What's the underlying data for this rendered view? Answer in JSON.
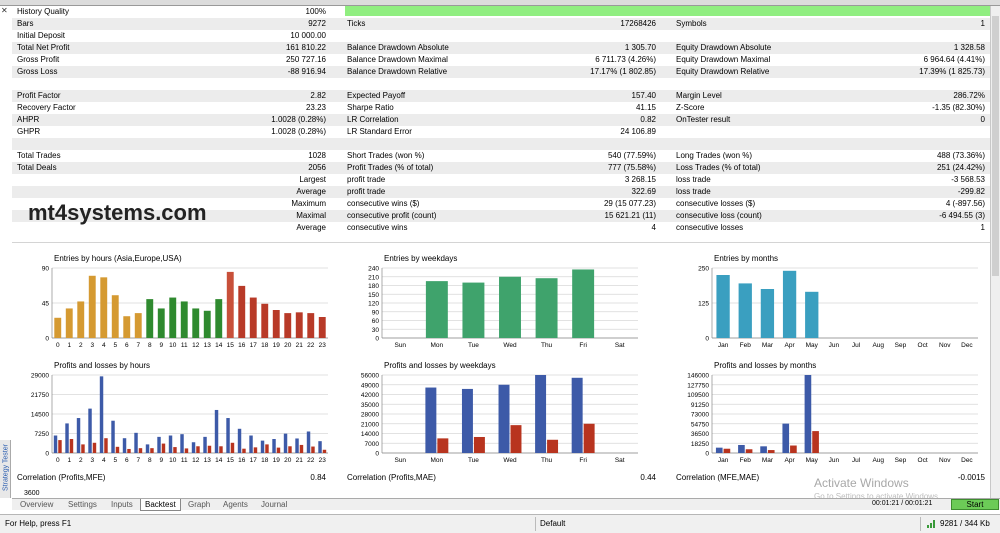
{
  "rows": [
    {
      "c1l": "History Quality",
      "c1v": "100%",
      "c2l": "",
      "c2v": "",
      "c3l": "",
      "c3v": "",
      "alt": false
    },
    {
      "c1l": "Bars",
      "c1v": "9272",
      "c2l": "Ticks",
      "c2v": "17268426",
      "c3l": "Symbols",
      "c3v": "1",
      "alt": true
    },
    {
      "c1l": "Initial Deposit",
      "c1v": "10 000.00",
      "c2l": "",
      "c2v": "",
      "c3l": "",
      "c3v": "",
      "alt": false
    },
    {
      "c1l": "Total Net Profit",
      "c1v": "161 810.22",
      "c2l": "Balance Drawdown Absolute",
      "c2v": "1 305.70",
      "c3l": "Equity Drawdown Absolute",
      "c3v": "1 328.58",
      "alt": true
    },
    {
      "c1l": "Gross Profit",
      "c1v": "250 727.16",
      "c2l": "Balance Drawdown Maximal",
      "c2v": "6 711.73 (4.26%)",
      "c3l": "Equity Drawdown Maximal",
      "c3v": "6 964.64 (4.41%)",
      "alt": false
    },
    {
      "c1l": "Gross Loss",
      "c1v": "-88 916.94",
      "c2l": "Balance Drawdown Relative",
      "c2v": "17.17% (1 802.85)",
      "c3l": "Equity Drawdown Relative",
      "c3v": "17.39% (1 825.73)",
      "alt": true
    },
    {
      "c1l": "",
      "c1v": "",
      "c2l": "",
      "c2v": "",
      "c3l": "",
      "c3v": "",
      "alt": false
    },
    {
      "c1l": "Profit Factor",
      "c1v": "2.82",
      "c2l": "Expected Payoff",
      "c2v": "157.40",
      "c3l": "Margin Level",
      "c3v": "286.72%",
      "alt": true
    },
    {
      "c1l": "Recovery Factor",
      "c1v": "23.23",
      "c2l": "Sharpe Ratio",
      "c2v": "41.15",
      "c3l": "Z-Score",
      "c3v": "-1.35 (82.30%)",
      "alt": false
    },
    {
      "c1l": "AHPR",
      "c1v": "1.0028 (0.28%)",
      "c2l": "LR Correlation",
      "c2v": "0.82",
      "c3l": "OnTester result",
      "c3v": "0",
      "alt": true
    },
    {
      "c1l": "GHPR",
      "c1v": "1.0028 (0.28%)",
      "c2l": "LR Standard Error",
      "c2v": "24 106.89",
      "c3l": "",
      "c3v": "",
      "alt": false
    },
    {
      "c1l": "",
      "c1v": "",
      "c2l": "",
      "c2v": "",
      "c3l": "",
      "c3v": "",
      "alt": true
    },
    {
      "c1l": "Total Trades",
      "c1v": "1028",
      "c2l": "Short Trades (won %)",
      "c2v": "540 (77.59%)",
      "c3l": "Long Trades (won %)",
      "c3v": "488 (73.36%)",
      "alt": false
    },
    {
      "c1l": "Total Deals",
      "c1v": "2056",
      "c2l": "Profit Trades (% of total)",
      "c2v": "777 (75.58%)",
      "c3l": "Loss Trades (% of total)",
      "c3v": "251 (24.42%)",
      "alt": true
    },
    {
      "c1l": "",
      "rlab": "Largest",
      "c1v": "",
      "c2l": "profit trade",
      "c2v": "3 268.15",
      "c3l": "loss trade",
      "c3v": "-3 568.53",
      "alt": false
    },
    {
      "c1l": "",
      "rlab": "Average",
      "c1v": "",
      "c2l": "profit trade",
      "c2v": "322.69",
      "c3l": "loss trade",
      "c3v": "-299.82",
      "alt": true
    },
    {
      "c1l": "",
      "rlab": "Maximum",
      "c1v": "",
      "c2l": "consecutive wins ($)",
      "c2v": "29 (15 077.23)",
      "c3l": "consecutive losses ($)",
      "c3v": "4 (-897.56)",
      "alt": false
    },
    {
      "c1l": "",
      "rlab": "Maximal",
      "c1v": "",
      "c2l": "consecutive profit (count)",
      "c2v": "15 621.21 (11)",
      "c3l": "consecutive loss (count)",
      "c3v": "-6 494.55 (3)",
      "alt": true
    },
    {
      "c1l": "",
      "rlab": "Average",
      "c1v": "",
      "c2l": "consecutive wins",
      "c2v": "4",
      "c3l": "consecutive losses",
      "c3v": "1",
      "alt": false
    }
  ],
  "watermark": "mt4systems.com",
  "correlation": {
    "l1": "Correlation (Profits,MFE)",
    "v1": "0.84",
    "l2": "Correlation (Profits,MAE)",
    "v2": "0.44",
    "l3": "Correlation (MFE,MAE)",
    "v3": "-0.0015"
  },
  "extra_value": "3600",
  "tabs": [
    "Overview",
    "Settings",
    "Inputs",
    "Backtest",
    "Graph",
    "Agents",
    "Journal"
  ],
  "active_tab": "Backtest",
  "side_tab": "Strategy Tester",
  "time_text": "00:01:21 / 00:01:21",
  "start_label": "Start",
  "status": {
    "left": "For Help, press F1",
    "mid": "Default",
    "right": "9281 / 344 Kb"
  },
  "activate": {
    "title": "Activate Windows",
    "sub": "Go to Settings to activate Windows."
  },
  "colors": {
    "accent_green": "#90ee80",
    "start_green": "#6ccb57",
    "profit_blue": "#3d5aa8",
    "loss_red": "#b8341f"
  },
  "chart_data": [
    {
      "type": "bar",
      "title": "Entries by hours (Asia,Europe,USA)",
      "categories": [
        "0",
        "1",
        "2",
        "3",
        "4",
        "5",
        "6",
        "7",
        "8",
        "9",
        "10",
        "11",
        "12",
        "13",
        "14",
        "15",
        "16",
        "17",
        "18",
        "19",
        "20",
        "21",
        "22",
        "23"
      ],
      "values": [
        26,
        38,
        47,
        80,
        78,
        55,
        28,
        32,
        50,
        38,
        52,
        47,
        38,
        35,
        50,
        85,
        67,
        52,
        44,
        36,
        32,
        33,
        32,
        27
      ],
      "bar_colors": [
        "#d59a32",
        "#d59a32",
        "#d59a32",
        "#d59a32",
        "#d59a32",
        "#d59a32",
        "#d59a32",
        "#d59a32",
        "#2f8a2f",
        "#2f8a2f",
        "#2f8a2f",
        "#2f8a2f",
        "#2f8a2f",
        "#2f8a2f",
        "#2f8a2f",
        "#c8503a",
        "#b83a28",
        "#b83a28",
        "#b83a28",
        "#b83a28",
        "#b83a28",
        "#b83a28",
        "#b83a28",
        "#b83a28"
      ],
      "yticks": [
        "0",
        "45",
        "90"
      ],
      "ylim": [
        0,
        90
      ]
    },
    {
      "type": "bar",
      "title": "Entries by weekdays",
      "categories": [
        "Sun",
        "Mon",
        "Tue",
        "Wed",
        "Thu",
        "Fri",
        "Sat"
      ],
      "values": [
        0,
        195,
        190,
        210,
        205,
        235,
        0
      ],
      "bar_color": "#3fa36c",
      "yticks": [
        "0",
        "30",
        "60",
        "90",
        "120",
        "150",
        "180",
        "210",
        "240"
      ],
      "ylim": [
        0,
        240
      ]
    },
    {
      "type": "bar",
      "title": "Entries by months",
      "categories": [
        "Jan",
        "Feb",
        "Mar",
        "Apr",
        "May",
        "Jun",
        "Jul",
        "Aug",
        "Sep",
        "Oct",
        "Nov",
        "Dec"
      ],
      "values": [
        225,
        195,
        175,
        240,
        165,
        0,
        0,
        0,
        0,
        0,
        0,
        0
      ],
      "bar_color": "#3a9fc0",
      "yticks": [
        "0",
        "125",
        "250"
      ],
      "ylim": [
        0,
        250
      ]
    },
    {
      "type": "bar",
      "title": "Profits and losses by hours",
      "categories": [
        "0",
        "1",
        "2",
        "3",
        "4",
        "5",
        "6",
        "7",
        "8",
        "9",
        "10",
        "11",
        "12",
        "13",
        "14",
        "15",
        "16",
        "17",
        "18",
        "19",
        "20",
        "21",
        "22",
        "23"
      ],
      "series": [
        {
          "name": "profit",
          "values": [
            6500,
            11000,
            13000,
            16500,
            28500,
            12000,
            5500,
            7500,
            3200,
            6000,
            6500,
            7000,
            4000,
            6000,
            16000,
            13000,
            9000,
            6500,
            4600,
            5200,
            7200,
            5400,
            8000,
            4400
          ]
        },
        {
          "name": "loss",
          "values": [
            4800,
            5200,
            3200,
            3800,
            5500,
            2300,
            1500,
            1800,
            1800,
            3500,
            2200,
            1700,
            2500,
            2700,
            2500,
            3800,
            1600,
            2100,
            3200,
            2000,
            2500,
            3000,
            2400,
            1200
          ]
        }
      ],
      "yticks": [
        "0",
        "7250",
        "14500",
        "21750",
        "29000"
      ],
      "ylim": [
        0,
        29000
      ]
    },
    {
      "type": "bar",
      "title": "Profits and losses by weekdays",
      "categories": [
        "Sun",
        "Mon",
        "Tue",
        "Wed",
        "Thu",
        "Fri",
        "Sat"
      ],
      "series": [
        {
          "name": "profit",
          "values": [
            0,
            47000,
            46000,
            49000,
            56000,
            54000,
            0
          ]
        },
        {
          "name": "loss",
          "values": [
            0,
            10500,
            11500,
            20000,
            9500,
            21000,
            0
          ]
        }
      ],
      "yticks": [
        "0",
        "7000",
        "14000",
        "21000",
        "28000",
        "35000",
        "42000",
        "49000",
        "56000"
      ],
      "ylim": [
        0,
        56000
      ]
    },
    {
      "type": "bar",
      "title": "Profits and losses by months",
      "categories": [
        "Jan",
        "Feb",
        "Mar",
        "Apr",
        "May",
        "Jun",
        "Jul",
        "Aug",
        "Sep",
        "Oct",
        "Nov",
        "Dec"
      ],
      "series": [
        {
          "name": "profit",
          "values": [
            10000,
            15000,
            12500,
            55000,
            146000,
            0,
            0,
            0,
            0,
            0,
            0,
            0
          ]
        },
        {
          "name": "loss",
          "values": [
            8000,
            7000,
            5500,
            14000,
            41000,
            0,
            0,
            0,
            0,
            0,
            0,
            0
          ]
        }
      ],
      "yticks": [
        "0",
        "18250",
        "36500",
        "54750",
        "73000",
        "91250",
        "109500",
        "127750",
        "146000"
      ],
      "ylim": [
        0,
        146000
      ]
    }
  ]
}
